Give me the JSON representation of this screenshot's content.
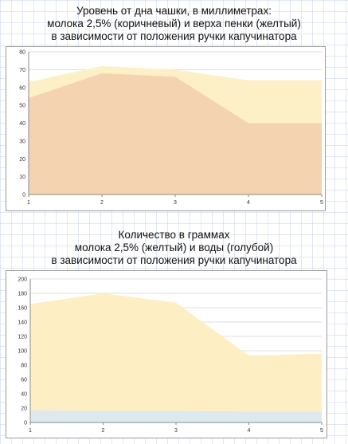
{
  "chart_data": [
    {
      "type": "area",
      "title": [
        "Уровень от дна чашки, в миллиметрах:",
        "молока 2,5% (коричневый) и верха пенки (желтый)",
        "в зависимости от положения ручки капучинатора"
      ],
      "categories": [
        "1",
        "2",
        "3",
        "4",
        "5"
      ],
      "series": [
        {
          "key": "foam",
          "values": [
            63,
            72,
            70,
            64,
            64
          ],
          "color": "#fdefc6"
        },
        {
          "key": "milk",
          "values": [
            54,
            68,
            66,
            40,
            40
          ],
          "color": "#f4d3b1"
        }
      ],
      "ylim": [
        0,
        80
      ],
      "yticks": [
        0,
        10,
        20,
        30,
        40,
        50,
        60,
        70,
        80
      ],
      "grid": true
    },
    {
      "type": "area",
      "title": [
        "Количество в граммах",
        "молока 2,5% (желтый) и воды (голубой)",
        "в зависимости от положения ручки капучинатора"
      ],
      "categories": [
        "1",
        "2",
        "3",
        "4",
        "5"
      ],
      "series": [
        {
          "key": "milk",
          "values": [
            165,
            180,
            167,
            93,
            96
          ],
          "color": "#fdeec4"
        },
        {
          "key": "water",
          "values": [
            17,
            16,
            16,
            15,
            15
          ],
          "color": "#dde9ef"
        }
      ],
      "ylim": [
        0,
        200
      ],
      "yticks": [
        0,
        20,
        40,
        60,
        80,
        100,
        120,
        140,
        160,
        180,
        200
      ],
      "grid": true
    }
  ]
}
